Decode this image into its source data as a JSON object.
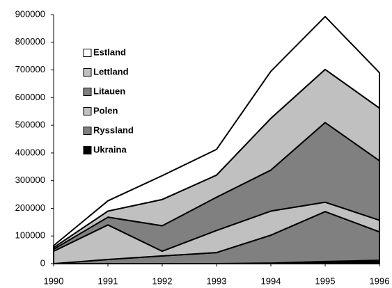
{
  "chart_data": {
    "type": "stacked_area",
    "categories": [
      "1990",
      "1991",
      "1992",
      "1993",
      "1994",
      "1995",
      "1996"
    ],
    "series": [
      {
        "name": "Estland",
        "color": "#ffffff",
        "values": [
          7000,
          37000,
          86000,
          93000,
          170000,
          191000,
          128000
        ]
      },
      {
        "name": "Lettland",
        "color": "#c0c0c0",
        "values": [
          6000,
          22000,
          95000,
          80000,
          187000,
          192000,
          190000
        ]
      },
      {
        "name": "Litauen",
        "color": "#808080",
        "values": [
          7000,
          28000,
          92000,
          120000,
          148000,
          288000,
          215000
        ]
      },
      {
        "name": "Polen",
        "color": "#c0c0c0",
        "values": [
          45000,
          125000,
          17000,
          80000,
          87000,
          34000,
          42000
        ]
      },
      {
        "name": "Ryssland",
        "color": "#808080",
        "values": [
          0,
          15000,
          28000,
          40000,
          101000,
          180000,
          103000
        ]
      },
      {
        "name": "Ukraina",
        "color": "#000000",
        "values": [
          0,
          0,
          0,
          0,
          2000,
          8000,
          12000
        ]
      }
    ],
    "ylim": [
      0,
      900000
    ],
    "yticks": [
      0,
      100000,
      200000,
      300000,
      400000,
      500000,
      600000,
      700000,
      800000,
      900000
    ],
    "legend": "upper left"
  }
}
